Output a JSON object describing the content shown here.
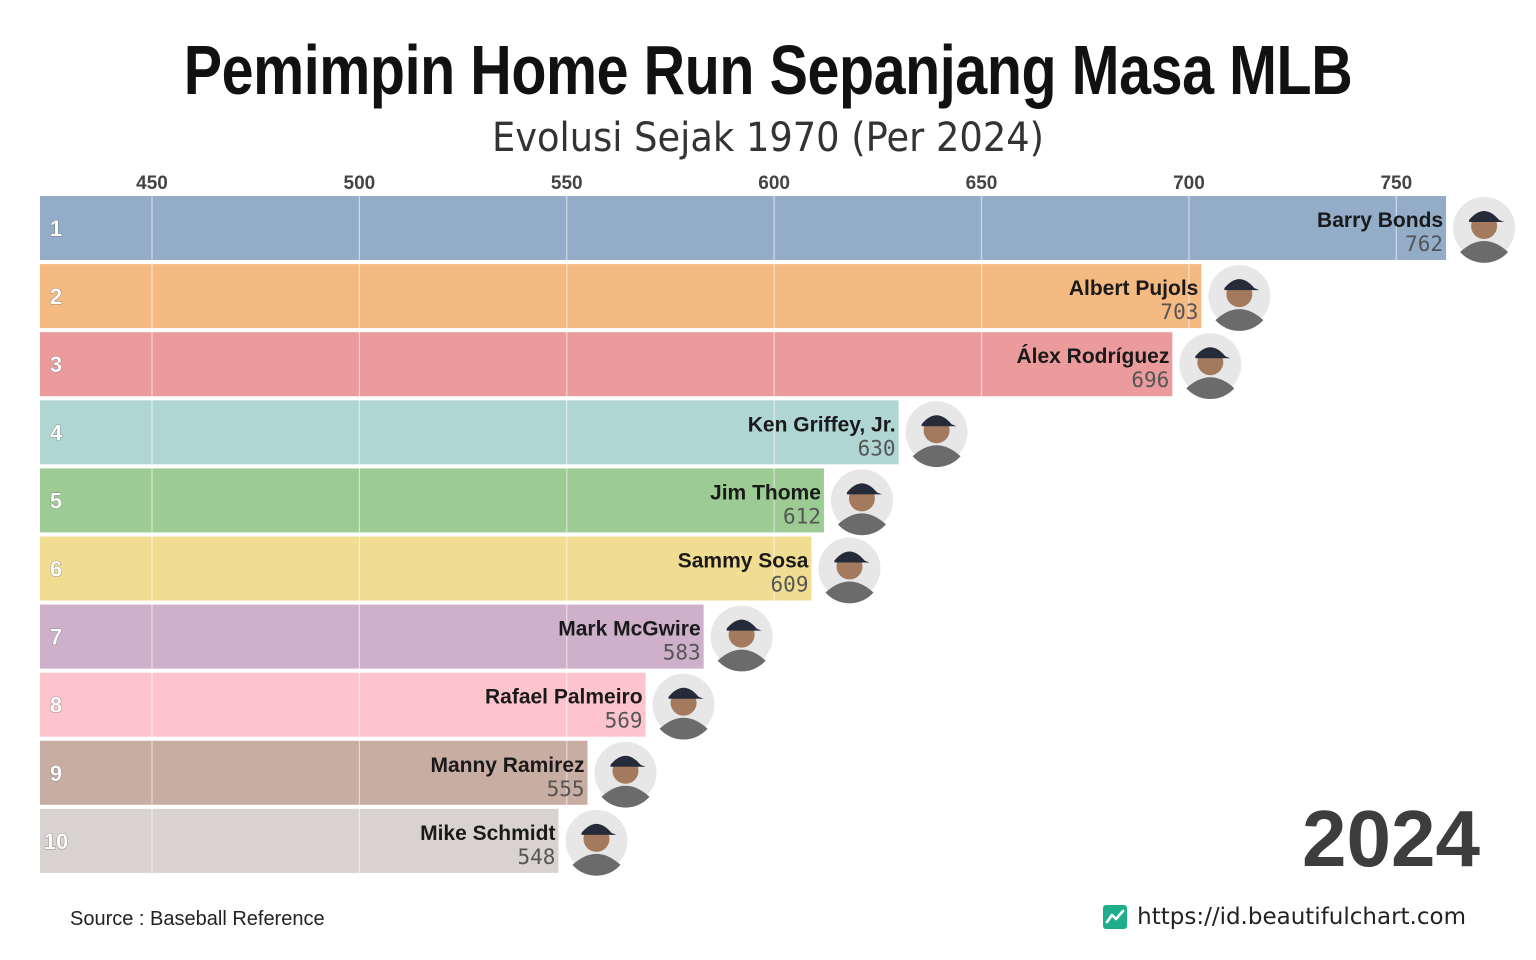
{
  "title": "Pemimpin Home Run Sepanjang Masa MLB",
  "subtitle": "Evolusi Sejak 1970 (Per 2024)",
  "source": "Source : Baseball Reference",
  "url": "https://id.beautifulchart.com",
  "logo_icon": "trend-line-icon",
  "colors": {
    "grid": "#ffffff",
    "tick_text": "#444444"
  },
  "chart_data": {
    "type": "bar",
    "orientation": "horizontal",
    "title": "Pemimpin Home Run Sepanjang Masa MLB",
    "subtitle": "Evolusi Sejak 1970 (Per 2024)",
    "year": "2024",
    "x_ticks": [
      450,
      500,
      550,
      600,
      650,
      700,
      750
    ],
    "xlim": [
      423,
      775
    ],
    "grid": true,
    "axis_position": "top",
    "bars": [
      {
        "rank": "1",
        "name": "Barry Bonds",
        "value": 762,
        "color": "#93adc9"
      },
      {
        "rank": "2",
        "name": "Albert Pujols",
        "value": 703,
        "color": "#f5ba82"
      },
      {
        "rank": "3",
        "name": "Álex Rodríguez",
        "value": 696,
        "color": "#ec9b9c"
      },
      {
        "rank": "4",
        "name": "Ken Griffey, Jr.",
        "value": 630,
        "color": "#afd6d2"
      },
      {
        "rank": "5",
        "name": "Jim Thome",
        "value": 612,
        "color": "#9ccb94"
      },
      {
        "rank": "6",
        "name": "Sammy Sosa",
        "value": 609,
        "color": "#f1dd92"
      },
      {
        "rank": "7",
        "name": "Mark McGwire",
        "value": 583,
        "color": "#cfb0cb"
      },
      {
        "rank": "8",
        "name": "Rafael Palmeiro",
        "value": 569,
        "color": "#fdc5cb"
      },
      {
        "rank": "9",
        "name": "Manny Ramirez",
        "value": 555,
        "color": "#c8ada3"
      },
      {
        "rank": "10",
        "name": "Mike Schmidt",
        "value": 548,
        "color": "#d8d3d1"
      }
    ]
  }
}
